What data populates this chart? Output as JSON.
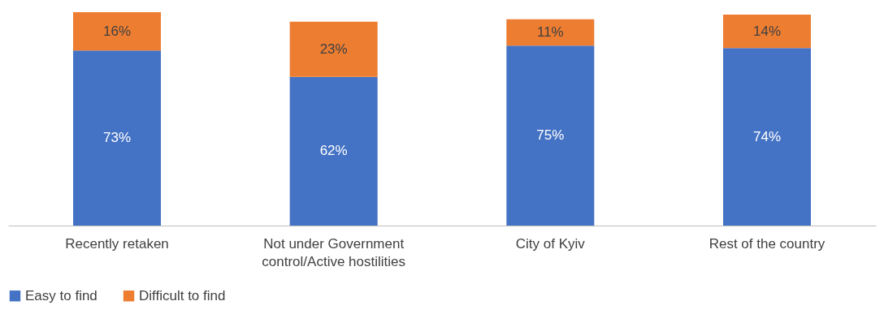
{
  "chart_data": {
    "type": "bar",
    "stacked": true,
    "categories": [
      "Recently retaken",
      "Not under Government control/Active hostilities",
      "City of Kyiv",
      "Rest of the country"
    ],
    "series": [
      {
        "name": "Easy to find",
        "color": "#4472c4",
        "values": [
          73,
          62,
          75,
          74
        ],
        "value_labels": [
          "73%",
          "62%",
          "75%",
          "74%"
        ]
      },
      {
        "name": "Difficult to find",
        "color": "#ed7d31",
        "values": [
          16,
          23,
          11,
          14
        ],
        "value_labels": [
          "16%",
          "23%",
          "11%",
          "14%"
        ]
      }
    ],
    "legend": "bottom"
  }
}
